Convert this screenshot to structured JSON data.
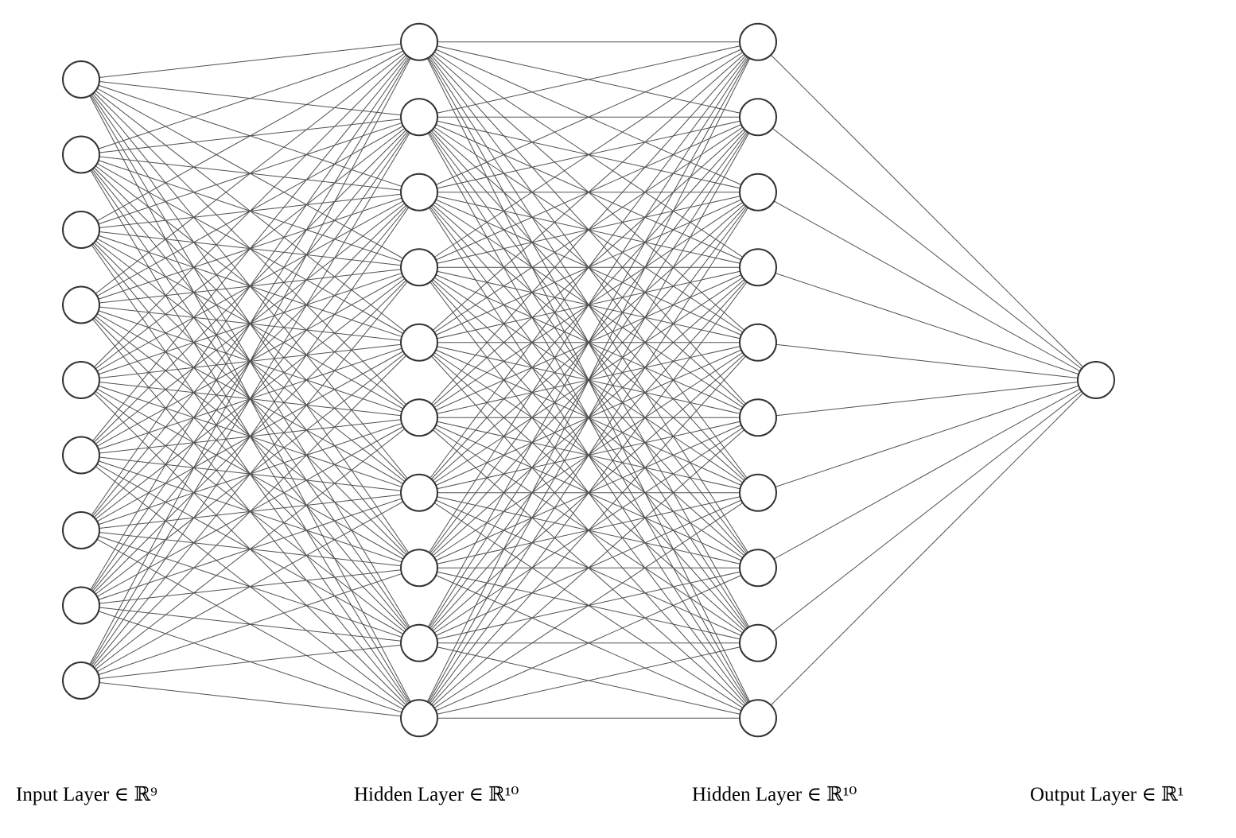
{
  "diagram": {
    "type": "fully-connected-neural-network",
    "colors": {
      "edge": "#505050",
      "node_stroke": "#333333",
      "node_fill": "#ffffff",
      "background": "#ffffff",
      "label_text": "#000000"
    },
    "layers": [
      {
        "label": "Input Layer ∈ ℝ⁹",
        "units": 9
      },
      {
        "label": "Hidden Layer ∈ ℝ¹⁰",
        "units": 10
      },
      {
        "label": "Hidden Layer ∈ ℝ¹⁰",
        "units": 10
      },
      {
        "label": "Output Layer ∈ ℝ¹",
        "units": 1
      }
    ]
  }
}
